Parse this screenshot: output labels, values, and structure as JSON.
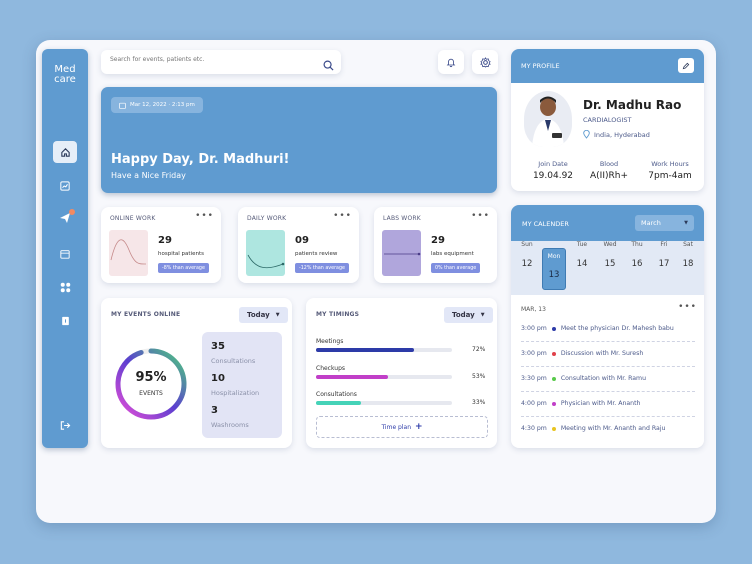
{
  "app": {
    "logo_line1": "Med",
    "logo_line2": "care"
  },
  "sidebar": {
    "items": [
      {
        "name": "home-icon"
      },
      {
        "name": "chart-icon"
      },
      {
        "name": "send-icon"
      },
      {
        "name": "calendar-icon"
      },
      {
        "name": "grid-icon"
      },
      {
        "name": "document-icon"
      },
      {
        "name": "logout-icon"
      }
    ]
  },
  "search": {
    "placeholder": "Search for events, patients etc."
  },
  "banner": {
    "date": "Mar 12, 2022 · 2:13 pm",
    "greeting": "Happy Day, Dr. Madhuri!",
    "sub": "Have a Nice Friday"
  },
  "stats": [
    {
      "title": "ONLINE WORK",
      "value": "29",
      "label": "hospital patients",
      "tag": "-8% than average",
      "color": "#f6e6e8"
    },
    {
      "title": "DAILY WORK",
      "value": "09",
      "label": "patients review",
      "tag": "-12% than average",
      "color": "#aee6e0"
    },
    {
      "title": "LABS WORK",
      "value": "29",
      "label": "labs equipment",
      "tag": "0% than average",
      "color": "#b0a6dc"
    }
  ],
  "events_online": {
    "title": "MY EVENTS ONLINE",
    "dropdown": "Today",
    "percent": "95%",
    "percent_label": "EVENTS",
    "percent_value": 0.95,
    "items": [
      {
        "value": "35",
        "label": "Consultations"
      },
      {
        "value": "10",
        "label": "Hospitalization"
      },
      {
        "value": "3",
        "label": "Washrooms"
      }
    ]
  },
  "timings": {
    "title": "MY TIMINGS",
    "dropdown": "Today",
    "rows": [
      {
        "label": "Meetings",
        "pct": "72%",
        "value": 0.72,
        "color": "#2d3ba8"
      },
      {
        "label": "Checkups",
        "pct": "53%",
        "value": 0.53,
        "color": "#c13fc8"
      },
      {
        "label": "Consultations",
        "pct": "33%",
        "value": 0.33,
        "color": "#45d3b8"
      }
    ],
    "button": "Time plan"
  },
  "profile": {
    "header": "MY PROFILE",
    "name": "Dr. Madhu Rao",
    "role": "CARDIALOGIST",
    "location": "India, Hyderabad",
    "fields": [
      {
        "label": "Join Date",
        "value": "19.04.92"
      },
      {
        "label": "Blood",
        "value": "A(II)Rh+"
      },
      {
        "label": "Work Hours",
        "value": "7pm-4am"
      }
    ]
  },
  "calendar": {
    "header": "MY CALENDER",
    "month": "March",
    "days": [
      {
        "name": "Sun",
        "num": "12"
      },
      {
        "name": "Mon",
        "num": "13",
        "selected": true
      },
      {
        "name": "Tue",
        "num": "14"
      },
      {
        "name": "Wed",
        "num": "15"
      },
      {
        "name": "Thu",
        "num": "16"
      },
      {
        "name": "Fri",
        "num": "17"
      },
      {
        "name": "Sat",
        "num": "18"
      }
    ],
    "date_label": "MAR, 13",
    "events": [
      {
        "time": "3:00 pm",
        "text": "Meet the physician Dr. Mahesh babu",
        "color": "#2d3ba8"
      },
      {
        "time": "3:00 pm",
        "text": "Discussion with Mr. Suresh",
        "color": "#e0404a"
      },
      {
        "time": "3:30 pm",
        "text": "Consultation with Mr. Ramu",
        "color": "#58c94a"
      },
      {
        "time": "4:00 pm",
        "text": "Physician with Mr. Ananth",
        "color": "#c13fc8"
      },
      {
        "time": "4:30 pm",
        "text": "Meeting with Mr. Ananth and Raju",
        "color": "#e8c420"
      }
    ]
  }
}
